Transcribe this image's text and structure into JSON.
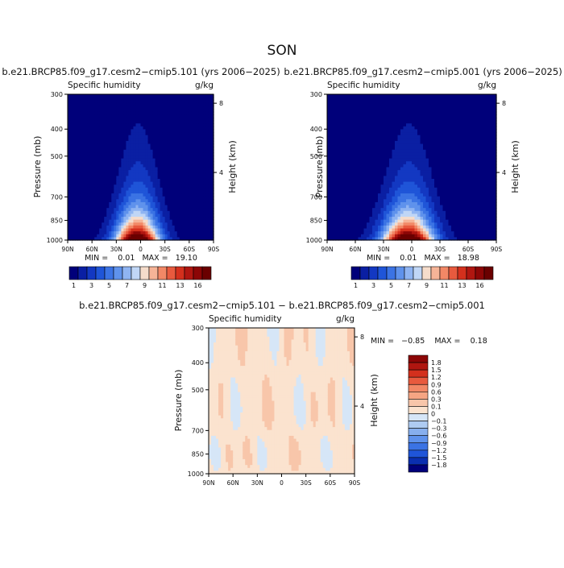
{
  "page": {
    "title": "SON"
  },
  "panels": [
    {
      "id": "left",
      "title": "b.e21.BRCP85.f09_g17.cesm2−cmip5.101 (yrs 2006−2025)",
      "variable": "Specific humidity",
      "units": "g/kg",
      "stats": "MIN =    0.01   MAX =   19.10"
    },
    {
      "id": "right",
      "title": "b.e21.BRCP85.f09_g17.cesm2−cmip5.001 (yrs 2006−2025)",
      "variable": "Specific humidity",
      "units": "g/kg",
      "stats": "MIN =    0.01   MAX =   18.98"
    },
    {
      "id": "diff",
      "title": "b.e21.BRCP85.f09_g17.cesm2−cmip5.101 − b.e21.BRCP85.f09_g17.cesm2−cmip5.001",
      "variable": "Specific humidity",
      "units": "g/kg",
      "stats": "MIN =   −0.85    MAX =    0.18"
    }
  ],
  "chart_data": [
    {
      "type": "heatmap",
      "title": "b.e21.BRCP85.f09_g17.cesm2−cmip5.101 (yrs 2006−2025)",
      "variable": "Specific humidity",
      "units": "g/kg",
      "xlabel": "",
      "ylabel": "Pressure (mb)",
      "y2label": "Height (km)",
      "x_ticks": [
        "90N",
        "60N",
        "30N",
        "0",
        "30S",
        "60S",
        "90S"
      ],
      "y_ticks": [
        "300",
        "400",
        "500",
        "700",
        "850",
        "1000"
      ],
      "y2_ticks": [
        "8",
        "4"
      ],
      "latitude_range": [
        90,
        -90
      ],
      "pressure_range_mb": [
        300,
        1000
      ],
      "min": 0.01,
      "max": 19.1,
      "colorbar_levels": [
        1,
        2,
        3,
        4,
        5,
        6,
        7,
        8,
        9,
        10,
        11,
        12,
        13,
        14,
        15,
        16
      ],
      "colorbar_labels": [
        "1",
        "3",
        "5",
        "7",
        "9",
        "11",
        "13",
        "16"
      ],
      "colors": [
        "#00007a",
        "#0a1fa3",
        "#1338c2",
        "#1f55d8",
        "#3b73e4",
        "#5f92ec",
        "#8fb4f2",
        "#c0d6f6",
        "#f5dccb",
        "#f6b497",
        "#f28866",
        "#e85a3e",
        "#d4301d",
        "#b01610",
        "#8c0606",
        "#6a0000"
      ]
    },
    {
      "type": "heatmap",
      "title": "b.e21.BRCP85.f09_g17.cesm2−cmip5.001 (yrs 2006−2025)",
      "variable": "Specific humidity",
      "units": "g/kg",
      "xlabel": "",
      "ylabel": "Pressure (mb)",
      "y2label": "Height (km)",
      "x_ticks": [
        "90N",
        "60N",
        "30N",
        "0",
        "30S",
        "60S",
        "90S"
      ],
      "y_ticks": [
        "300",
        "400",
        "500",
        "700",
        "850",
        "1000"
      ],
      "y2_ticks": [
        "8",
        "4"
      ],
      "latitude_range": [
        90,
        -90
      ],
      "pressure_range_mb": [
        300,
        1000
      ],
      "min": 0.01,
      "max": 18.98,
      "colorbar_levels": [
        1,
        2,
        3,
        4,
        5,
        6,
        7,
        8,
        9,
        10,
        11,
        12,
        13,
        14,
        15,
        16
      ],
      "colorbar_labels": [
        "1",
        "3",
        "5",
        "7",
        "9",
        "11",
        "13",
        "16"
      ],
      "colors": [
        "#00007a",
        "#0a1fa3",
        "#1338c2",
        "#1f55d8",
        "#3b73e4",
        "#5f92ec",
        "#8fb4f2",
        "#c0d6f6",
        "#f5dccb",
        "#f6b497",
        "#f28866",
        "#e85a3e",
        "#d4301d",
        "#b01610",
        "#8c0606",
        "#6a0000"
      ]
    },
    {
      "type": "heatmap",
      "title": "b.e21.BRCP85.f09_g17.cesm2−cmip5.101 − b.e21.BRCP85.f09_g17.cesm2−cmip5.001",
      "variable": "Specific humidity",
      "units": "g/kg",
      "xlabel": "",
      "ylabel": "Pressure (mb)",
      "y2label": "Height (km)",
      "x_ticks": [
        "90N",
        "60N",
        "30N",
        "0",
        "30S",
        "60S",
        "90S"
      ],
      "y_ticks": [
        "300",
        "400",
        "500",
        "700",
        "850",
        "1000"
      ],
      "y2_ticks": [
        "8",
        "4"
      ],
      "latitude_range": [
        90,
        -90
      ],
      "pressure_range_mb": [
        300,
        1000
      ],
      "min": -0.85,
      "max": 0.18,
      "colorbar_labels": [
        "1.8",
        "1.5",
        "1.2",
        "0.9",
        "0.6",
        "0.3",
        "0.1",
        "0",
        "−0.1",
        "−0.3",
        "−0.6",
        "−0.9",
        "−1.2",
        "−1.5",
        "−1.8"
      ],
      "colors": [
        "#8c0606",
        "#b01610",
        "#d4301d",
        "#e85a3e",
        "#f28866",
        "#f6a583",
        "#f8c6aa",
        "#fbe3cf",
        "#d6e6f7",
        "#aecbf2",
        "#87afee",
        "#5f92ec",
        "#3b73e4",
        "#1f55d8",
        "#0a2fb0",
        "#00007a"
      ]
    }
  ]
}
